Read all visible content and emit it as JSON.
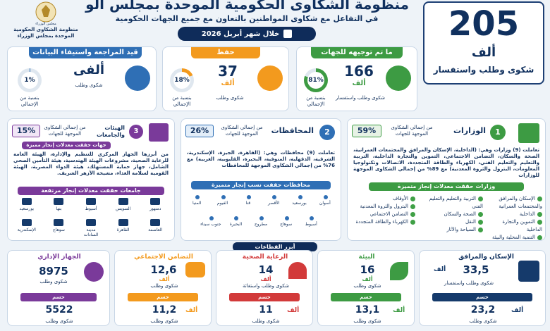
{
  "header": {
    "title": "منظومة الشكاوى الحكومية الموحدة بمجلس الوزراء",
    "subtitle": "في التفاعل مع شكاوى المواطنين بالتعاون مع جميع الجهات الحكومية",
    "period": "خلال شهر أبريل 2026",
    "logo_text1": "منظومة الشكاوى الحكومية",
    "logo_text2": "الموحدة بمجلس الوزراء",
    "seal_text": "مجلس الوزراء"
  },
  "total": {
    "value": "205",
    "unit": "ألف",
    "label": "شكوى وطلب واستفسار"
  },
  "boxes": [
    {
      "title": "ما تم توجيهه للجهات",
      "value": "166",
      "unit": "ألف",
      "label": "شكوى وطلب واستفسار",
      "percent_text": "81%",
      "percent": 81,
      "percent_label": "بنسبة من الإجمالي",
      "color": "#3d9b43"
    },
    {
      "title": "حفظ",
      "value": "37",
      "unit": "ألف",
      "label": "شكوى وطلب",
      "percent_text": "18%",
      "percent": 18,
      "percent_label": "بنسبة من الإجمالي",
      "color": "#f39a1e"
    },
    {
      "title": "قيد المراجعة واستيفاء البيانات",
      "value": "ألفى",
      "unit": "",
      "label": "شكوى وطلب",
      "percent_text": "1%",
      "percent": 1,
      "percent_label": "بنسبة من الإجمالي",
      "color": "#2f6fb5"
    }
  ],
  "ministries": {
    "num": "1",
    "title": "الوزارات",
    "percent_text": "59%",
    "percent_label": "من إجمالي الشكاوى الموجهة للجهات",
    "desc": "تعاملت (9) وزارات وهي: (الداخلية، الإسكان والمرافق والمجتمعات العمرانية، الصحة والسكان، التضامن الاجتماعي، التموين والتجارة الداخلية، التربية والتعليم والتعليم الفني، الكهرباء والطاقة المتجددة، الاتصالات وتكنولوجيا المعلومات، البترول والثروة المعدنية) مع 89% من إجمالي الشكاوى الموجهة للوزارات",
    "band": "وزارات حققت معدلات إنجاز متميزة",
    "col1": [
      "الإسكان والمرافق والمجتمعات العمرانية",
      "الداخلية",
      "التموين والتجارة الداخلية",
      "التنمية المحلية والبيئة"
    ],
    "col2": [
      "التربية والتعليم والتعليم الفني",
      "الصحة والسكان",
      "النقل",
      "السياحة والآثار"
    ],
    "col3": [
      "الأوقاف",
      "البترول والثروة المعدنية",
      "التضامن الاجتماعي",
      "الكهرباء والطاقة المتجددة"
    ]
  },
  "governorates": {
    "num": "2",
    "title": "المحافظات",
    "percent_text": "26%",
    "percent_label": "من إجمالي الشكاوى الموجهة للجهات",
    "desc": "تعاملت (9) محافظات وهي: (القاهرة، الجيزة، الإسكندرية، الشرقية، الدقهلية، المنوفية، البحيرة، القليوبية، الغربية) مع 76% من إجمالي الشكاوى الموجهة للمحافظات",
    "band": "محافظات حققت نسب إنجاز متميزة",
    "row1": [
      "أسوان",
      "بورسعيد",
      "الأقصر",
      "قنا",
      "الفيوم",
      "المنيا"
    ],
    "row2": [
      "أسيوط",
      "سوهاج",
      "مطروح",
      "البحيرة",
      "جنوب سيناء"
    ]
  },
  "bodies": {
    "num": "3",
    "title": "الهيئات والجامعات",
    "percent_text": "15%",
    "percent_label": "من إجمالي الشكاوى الموجهة للجهات",
    "band1": "جهات حققت معدلات إنجاز مميزة",
    "desc": "من أبرزها الجهاز المركزي للتنظيم والإدارة، الهيئة العامة للرعاية الصحية، مشروعات الهيئة الهندسية، هيئة التأمين الصحي الشامل، جهاز حماية المستهلك، هيئة الدواء المصرية، الهيئة القومية لسلامة الغذاء، مشيخة الأزهر الشريف.",
    "band2": "جامعات حققت معدلات إنجاز مرتفعة",
    "row1": [
      "دمنهور",
      "السويس",
      "أسيوط",
      "بنها",
      "بورسعيد"
    ],
    "row2": [
      "العاصمة",
      "القاهرة",
      "مدينة السادات",
      "سوهاج",
      "الإسكندرية"
    ]
  },
  "sectors_title": "أبرز القطاعات",
  "hasm_label": "حسم",
  "sectors": [
    {
      "name": "الإسكان والمرافق",
      "value": "33,5",
      "unit": "ألف",
      "label": "شكوى وطلب واستفسار",
      "hasm_value": "23,2",
      "hasm_unit": "ألف",
      "hasm_label": "شكوى وطلب",
      "color": "#153a6b"
    },
    {
      "name": "البيئة",
      "value": "16",
      "unit": "ألف",
      "label": "شكوى وطلب",
      "hasm_value": "13,1",
      "hasm_unit": "ألف",
      "hasm_label": "شكوى وطلب",
      "color": "#3d9b43"
    },
    {
      "name": "الرعاية الصحية",
      "value": "14",
      "unit": "ألف",
      "label": "شكوى وطلب واستغاثة",
      "hasm_value": "11",
      "hasm_unit": "ألف",
      "hasm_label": "شكوى وطلب",
      "color": "#d23a3a"
    },
    {
      "name": "التضامن الاجتماعي",
      "value": "12,6",
      "unit": "ألف",
      "label": "شكوى وطلب",
      "hasm_value": "11,2",
      "hasm_unit": "ألف",
      "hasm_label": "شكوى وطلب",
      "color": "#f39a1e"
    },
    {
      "name": "الجهاز الإداري",
      "value": "8975",
      "unit": "",
      "label": "شكوى وطلب",
      "hasm_value": "5522",
      "hasm_unit": "",
      "hasm_label": "شكوى وطلب",
      "color": "#7a3a9a"
    }
  ]
}
